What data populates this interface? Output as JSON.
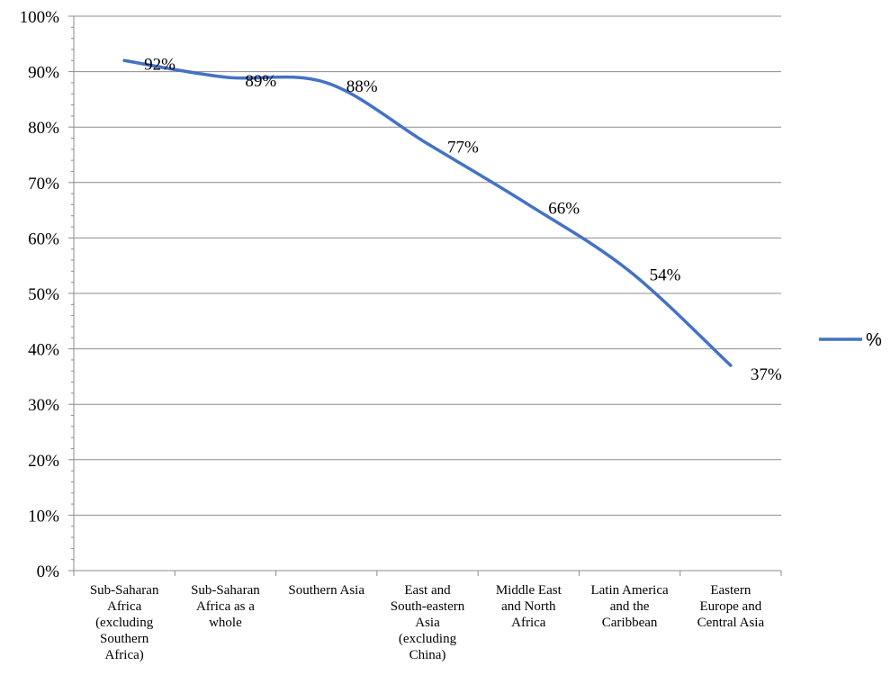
{
  "chart_data": {
    "type": "line",
    "categories": [
      [
        "Sub-Saharan",
        "Africa",
        "(excluding",
        "Southern",
        "Africa)"
      ],
      [
        "Sub-Saharan",
        "Africa as a",
        "whole"
      ],
      [
        "Southern Asia"
      ],
      [
        "East and",
        "South-eastern",
        "Asia",
        "(excluding",
        "China)"
      ],
      [
        "Middle East",
        "and North",
        "Africa"
      ],
      [
        "Latin America",
        "and the",
        "Caribbean"
      ],
      [
        "Eastern",
        "Europe and",
        "Central Asia"
      ]
    ],
    "series": [
      {
        "name": "%",
        "color": "#4472C4",
        "values": [
          0.92,
          0.89,
          0.88,
          0.77,
          0.66,
          0.54,
          0.37
        ],
        "labels": [
          "92%",
          "89%",
          "88%",
          "77%",
          "66%",
          "54%",
          "37%"
        ]
      }
    ],
    "ylim": [
      0,
      1
    ],
    "yticks": [
      0,
      0.1,
      0.2,
      0.3,
      0.4,
      0.5,
      0.6,
      0.7,
      0.8,
      0.9,
      1.0
    ],
    "ytick_labels": [
      "0%",
      "10%",
      "20%",
      "30%",
      "40%",
      "50%",
      "60%",
      "70%",
      "80%",
      "90%",
      "100%"
    ],
    "grid": true,
    "smooth": true,
    "legend": "right"
  }
}
